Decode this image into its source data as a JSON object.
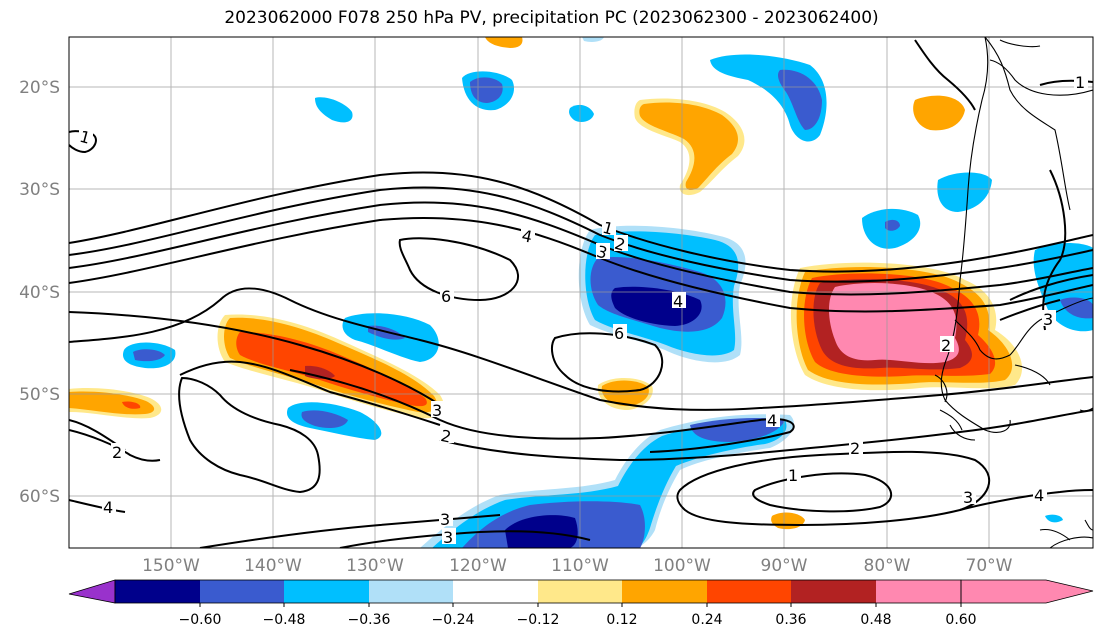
{
  "title": "2023062000 F078 250 hPa PV, precipitation PC (2023062300 - 2023062400)",
  "map": {
    "lat_labels": [
      "20°S",
      "30°S",
      "40°S",
      "50°S",
      "60°S"
    ],
    "lon_labels": [
      "150°W",
      "140°W",
      "130°W",
      "120°W",
      "110°W",
      "100°W",
      "90°W",
      "80°W",
      "70°W"
    ],
    "contour_labels": [
      "1",
      "1",
      "2",
      "3",
      "4",
      "6",
      "6",
      "1",
      "2",
      "3",
      "4",
      "2",
      "3",
      "4",
      "2",
      "1",
      "3",
      "4",
      "2",
      "3",
      "4",
      "3"
    ]
  },
  "colorbar": {
    "ticks": [
      "−0.60",
      "−0.48",
      "−0.36",
      "−0.24",
      "−0.12",
      "0.12",
      "0.24",
      "0.36",
      "0.48",
      "0.60"
    ],
    "colors": [
      "#9932cc",
      "#00008b",
      "#3a5bcf",
      "#00bfff",
      "#b0e0f8",
      "#ffffff",
      "#ffe88a",
      "#ffa500",
      "#ff4500",
      "#b22222",
      "#ff88b0"
    ]
  }
}
